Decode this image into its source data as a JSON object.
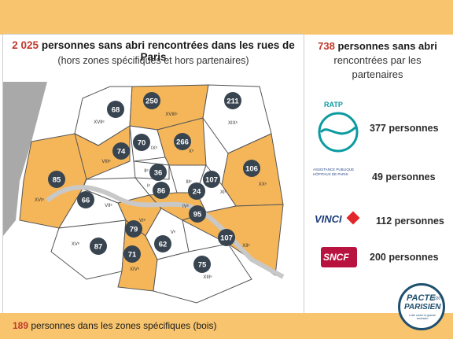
{
  "colors": {
    "accent": "#f8c56e",
    "arrondissement_fill": "#f5b65a",
    "badge": "#38444f",
    "highlight_number": "#c0392b"
  },
  "header": {
    "title_count": "2 025",
    "title_rest": "personnes sans abri rencontrées dans les rues de Paris",
    "subtitle": "(hors zones spécifiques et hors partenaires)"
  },
  "partners": {
    "count": "738",
    "title_strong": "personnes sans abri",
    "title_rest": "rencontrées par les partenaires",
    "items": [
      {
        "logo": "RATP",
        "count": "377 personnes"
      },
      {
        "logo": "ASSISTANCE PUBLIQUE HÔPITAUX DE PARIS",
        "count": "49 personnes"
      },
      {
        "logo": "VINCI",
        "count": "112 personnes"
      },
      {
        "logo": "SNCF",
        "count": "200 personnes"
      }
    ]
  },
  "footer": {
    "count": "189",
    "text": "personnes dans les zones spécifiques (bois)"
  },
  "pacte_logo": {
    "line1": "PACTE",
    "line2": "PARISIEN",
    "tagline": "Lutte contre la grande exclusion",
    "year": "2020"
  },
  "arrondissements": [
    {
      "id": "I",
      "label": "I",
      "value": 86,
      "highlighted": false
    },
    {
      "id": "II",
      "label": "II",
      "value": 36,
      "highlighted": false
    },
    {
      "id": "III",
      "label": "III",
      "value": 107,
      "highlighted": false
    },
    {
      "id": "IV",
      "label": "IV",
      "value": 95,
      "highlighted": true
    },
    {
      "id": "V",
      "label": "V",
      "value": 62,
      "highlighted": false
    },
    {
      "id": "VI",
      "label": "VI",
      "value": 79,
      "highlighted": true
    },
    {
      "id": "VII",
      "label": "VII",
      "value": 66,
      "highlighted": false
    },
    {
      "id": "VIII",
      "label": "VIII",
      "value": 74,
      "highlighted": true
    },
    {
      "id": "IX",
      "label": "IX",
      "value": 70,
      "highlighted": false
    },
    {
      "id": "X",
      "label": "X",
      "value": 266,
      "highlighted": true
    },
    {
      "id": "XI",
      "label": "XI",
      "value": 24,
      "highlighted": false
    },
    {
      "id": "XII",
      "label": "XII",
      "value": 107,
      "highlighted": true
    },
    {
      "id": "XIII",
      "label": "XIII",
      "value": 75,
      "highlighted": false
    },
    {
      "id": "XIV",
      "label": "XIV",
      "value": 71,
      "highlighted": true
    },
    {
      "id": "XV",
      "label": "XV",
      "value": 87,
      "highlighted": false
    },
    {
      "id": "XVI",
      "label": "XVI",
      "value": 85,
      "highlighted": true
    },
    {
      "id": "XVII",
      "label": "XVII",
      "value": 68,
      "highlighted": false
    },
    {
      "id": "XVIII",
      "label": "XVIII",
      "value": 250,
      "highlighted": true
    },
    {
      "id": "XIX",
      "label": "XIX",
      "value": 211,
      "highlighted": false
    },
    {
      "id": "XX",
      "label": "XX",
      "value": 106,
      "highlighted": true
    }
  ]
}
